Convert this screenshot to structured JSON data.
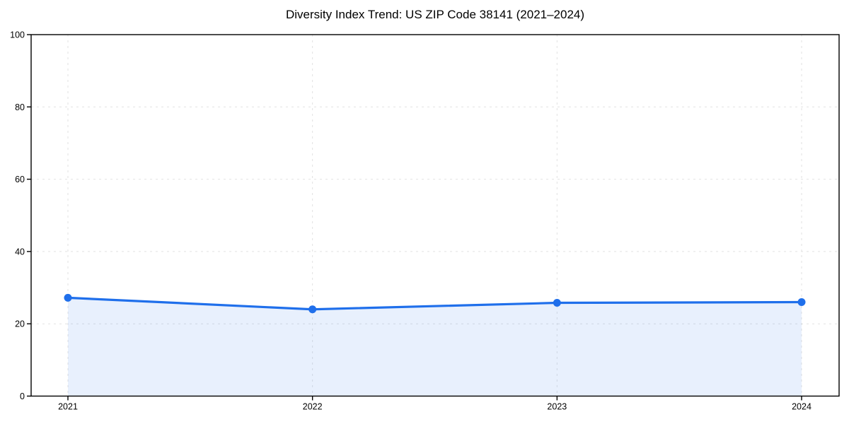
{
  "page": {
    "background": "#ffffff"
  },
  "chart_data": {
    "type": "line",
    "title": "Diversity Index Trend: US ZIP Code 38141 (2021–2024)",
    "categories": [
      "2021",
      "2022",
      "2023",
      "2024"
    ],
    "series": [
      {
        "name": "Diversity Index",
        "values": [
          27.2,
          24.0,
          25.8,
          26.0
        ]
      }
    ],
    "xlabel": "",
    "ylabel": "",
    "ylim": [
      0,
      100
    ],
    "yticks": [
      0,
      20,
      40,
      60,
      80,
      100
    ],
    "grid": "dashed-both-axes",
    "legend": "none",
    "marker": "circle",
    "colors": {
      "line": "#1f6feb",
      "marker": "#1f6feb",
      "area_fill": "rgba(31,111,235,0.10)",
      "grid": "#e2e2e2",
      "axis": "#000000",
      "tick_label": "#000000",
      "title": "#000000"
    }
  }
}
